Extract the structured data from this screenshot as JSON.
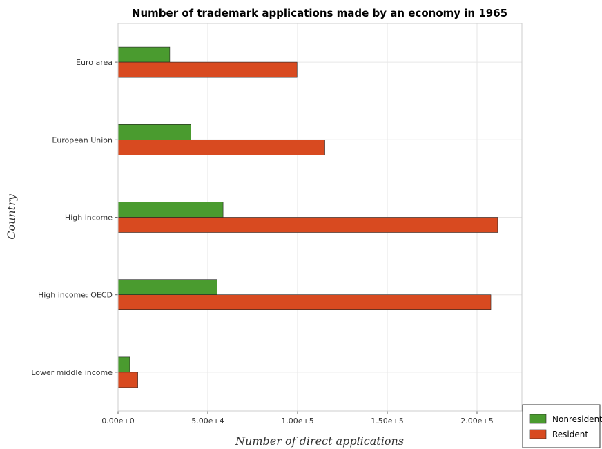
{
  "chart_data": {
    "type": "bar",
    "orientation": "horizontal",
    "title": "Number of trademark applications made by an economy in 1965",
    "xlabel": "Number of direct applications",
    "ylabel": "Country",
    "categories": [
      "Euro area",
      "European Union",
      "High income",
      "High income: OECD",
      "Lower middle income"
    ],
    "series": [
      {
        "name": "Nonresident",
        "color": "#4a9b2f",
        "values": [
          28800,
          40500,
          58500,
          55200,
          6500
        ]
      },
      {
        "name": "Resident",
        "color": "#d84a20",
        "values": [
          99700,
          115200,
          211500,
          207700,
          11000
        ]
      }
    ],
    "xlim": [
      0,
      225000
    ],
    "xticks": [
      0,
      50000,
      100000,
      150000,
      200000
    ],
    "xtick_labels": [
      "0.00e+0",
      "5.00e+4",
      "1.00e+5",
      "1.50e+5",
      "2.00e+5"
    ],
    "grid": true,
    "legend_position": "bottom-right"
  }
}
